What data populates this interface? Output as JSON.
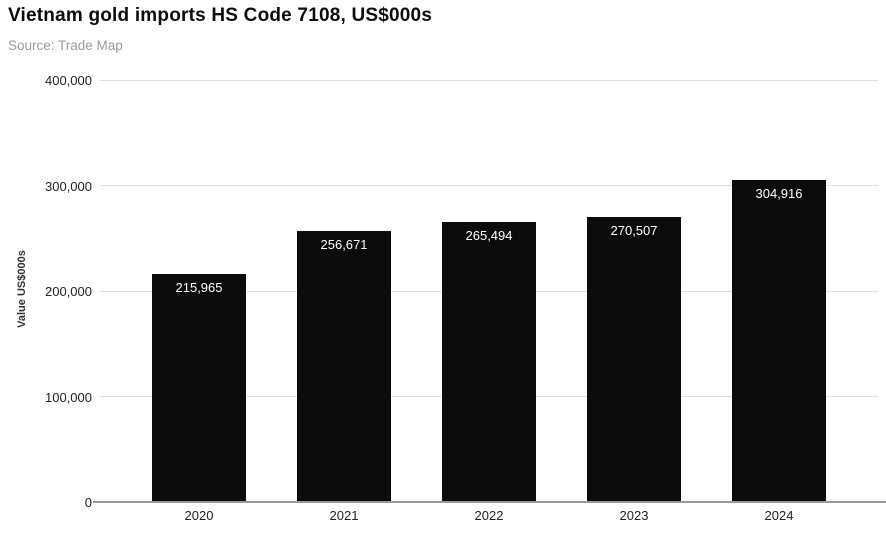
{
  "header": {
    "title": "Vietnam gold imports HS Code 7108, US$000s",
    "source": "Source: Trade Map"
  },
  "chart_data": {
    "type": "bar",
    "title": "Vietnam gold imports HS Code 7108, US$000s",
    "subtitle": "Source: Trade Map",
    "categories": [
      "2020",
      "2021",
      "2022",
      "2023",
      "2024"
    ],
    "values": [
      215965,
      256671,
      265494,
      270507,
      304916
    ],
    "bar_labels": [
      "215,965",
      "256,671",
      "265,494",
      "270,507",
      "304,916"
    ],
    "xlabel": "",
    "ylabel": "Value US$000s",
    "ylim": [
      0,
      400000
    ],
    "yticks": [
      0,
      100000,
      200000,
      300000,
      400000
    ],
    "ytick_labels": [
      "0",
      "100,000",
      "200,000",
      "300,000",
      "400,000"
    ],
    "grid": "horizontal",
    "legend": "none",
    "colors": {
      "bar": "#0b0b0b",
      "bar_label": "#ffffff",
      "gridline": "#e0e0e0",
      "axis_line": "#9a9a9a",
      "title": "#0d0d0d",
      "source": "#9b9b9b",
      "tick_label": "#222222"
    }
  }
}
